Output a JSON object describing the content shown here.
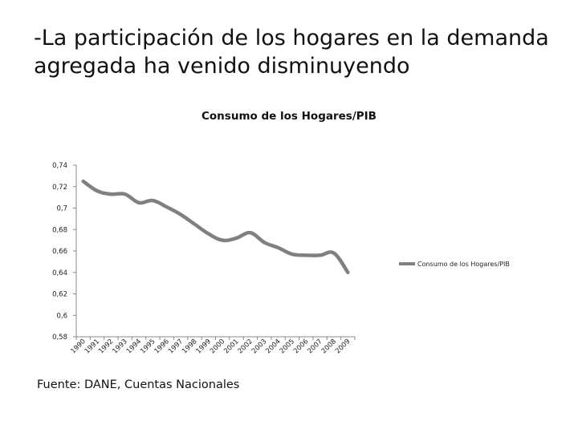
{
  "slide": {
    "title": "-La participación de los hogares en la demanda agregada ha venido disminuyendo",
    "source": "Fuente: DANE, Cuentas Nacionales"
  },
  "chart_data": {
    "type": "line",
    "title": "Consumo de los Hogares/PIB",
    "xlabel": "",
    "ylabel": "",
    "ylim": [
      0.58,
      0.74
    ],
    "yticks": [
      0.58,
      0.6,
      0.62,
      0.64,
      0.66,
      0.68,
      0.7,
      0.72,
      0.74
    ],
    "ytick_labels": [
      "0,58",
      "0,6",
      "0,62",
      "0,64",
      "0,66",
      "0,68",
      "0,7",
      "0,72",
      "0,74"
    ],
    "categories": [
      "1990",
      "1991",
      "1992",
      "1993",
      "1994",
      "1995",
      "1996",
      "1997",
      "1998",
      "1999",
      "2000",
      "2001",
      "2002",
      "2003",
      "2004",
      "2005",
      "2006",
      "2007",
      "2008",
      "2009"
    ],
    "series": [
      {
        "name": "Consumo de los Hogares/PIB",
        "color": "#808080",
        "values": [
          0.725,
          0.716,
          0.713,
          0.713,
          0.705,
          0.707,
          0.701,
          0.694,
          0.685,
          0.676,
          0.67,
          0.672,
          0.677,
          0.668,
          0.663,
          0.657,
          0.656,
          0.656,
          0.658,
          0.64
        ]
      }
    ],
    "legend_position": "right"
  }
}
